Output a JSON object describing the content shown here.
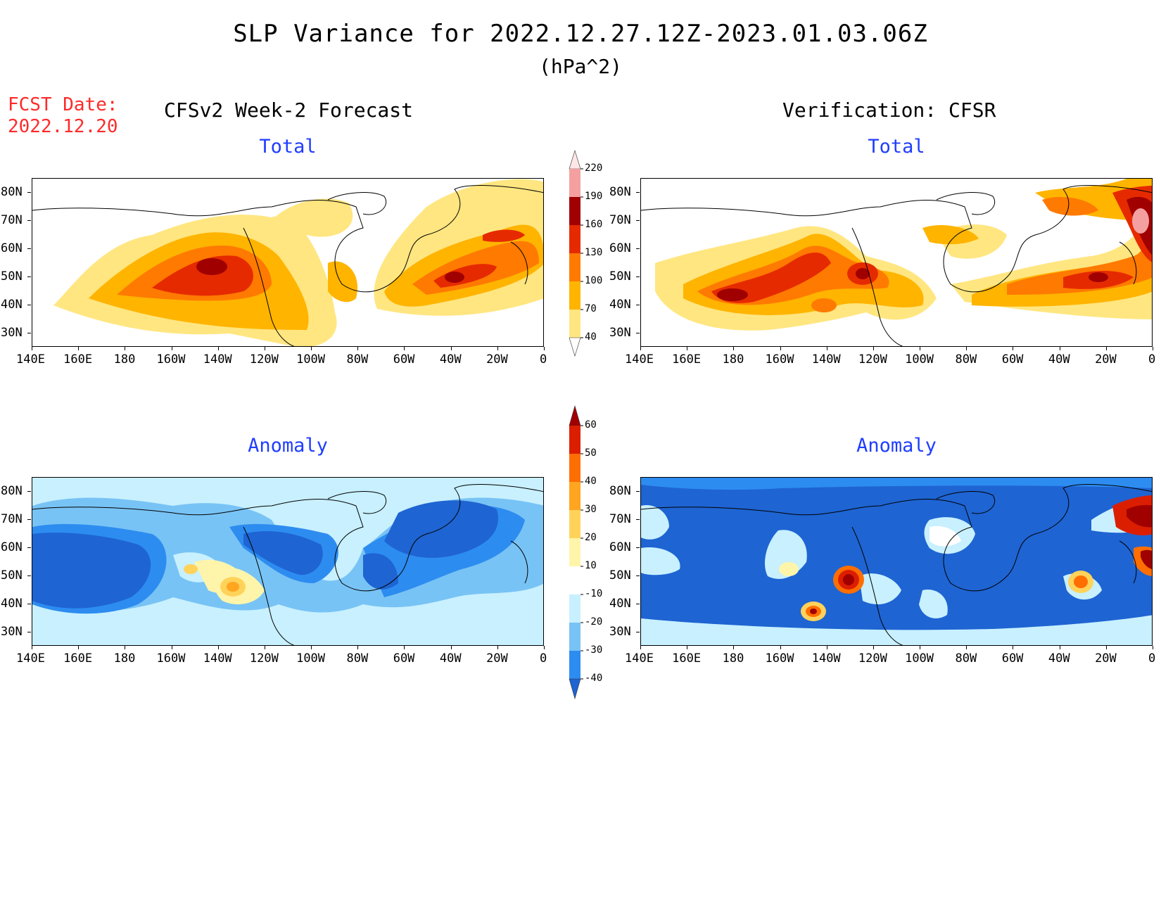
{
  "title": "SLP Variance for 2022.12.27.12Z-2023.01.03.06Z",
  "units": "(hPa^2)",
  "fcst_date": {
    "line1": "FCST Date:",
    "line2": "2022.12.20"
  },
  "columns": {
    "left": "CFSv2 Week-2 Forecast",
    "right": "Verification: CFSR"
  },
  "panels": {
    "fc_total": {
      "label": "Total"
    },
    "vf_total": {
      "label": "Total"
    },
    "fc_anom": {
      "label": "Anomaly"
    },
    "vf_anom": {
      "label": "Anomaly"
    }
  },
  "axes": {
    "lat_labels": [
      "80N",
      "70N",
      "60N",
      "50N",
      "40N",
      "30N"
    ],
    "lon_labels": [
      "140E",
      "160E",
      "180",
      "160W",
      "140W",
      "120W",
      "100W",
      "80W",
      "60W",
      "40W",
      "20W",
      "0"
    ]
  },
  "colorbars": {
    "total": {
      "levels": [
        "40",
        "70",
        "100",
        "130",
        "160",
        "190",
        "220"
      ],
      "colors": [
        "#ffe680",
        "#ffb400",
        "#ff7a00",
        "#e62a00",
        "#a00000",
        "#f4a0a0",
        "#ffe6e6"
      ]
    },
    "anomaly": {
      "levels": [
        "-40",
        "-30",
        "-20",
        "-10",
        "10",
        "20",
        "30",
        "40",
        "50",
        "60"
      ],
      "colors": [
        "#1e64d2",
        "#2d8cf0",
        "#78c3f5",
        "#c8f0ff",
        "#ffffff",
        "#fff5aa",
        "#ffd25a",
        "#ffa520",
        "#ff6e00",
        "#dc1e00",
        "#a00000"
      ]
    }
  }
}
